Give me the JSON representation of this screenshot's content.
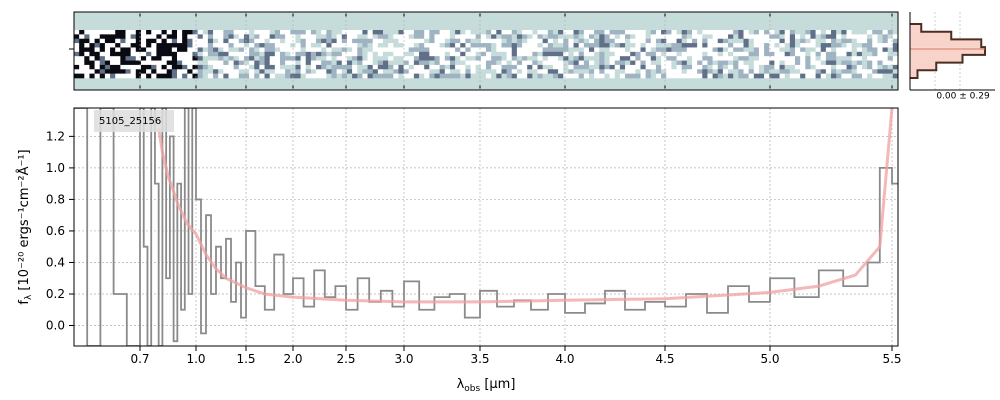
{
  "chart_data": [
    {
      "type": "heatmap",
      "description_role": "2D spectrum strip",
      "colormap": [
        "#ffffff",
        "#c5dcdb",
        "#9fb3c2",
        "#5f7088",
        "#0a0a12"
      ],
      "background_color": "#c5dcdb",
      "rows": 11,
      "cols": 160,
      "x_ticks_top_count": 0
    },
    {
      "type": "line",
      "label_box": "5105_25156",
      "xlabel_tex": "obs",
      "xlabel_main": "λ",
      "xlabel_unit": "[μm]",
      "ylabel_main": "f",
      "ylabel_unit": "[10⁻²⁰ ergs⁻¹cm⁻²Å⁻¹]",
      "ylabel_full": "f_λ [10^-20 ergs^-1cm^-2Å^-1]",
      "x_scale": "reciprocal-stretched",
      "x_range": [
        0.6,
        5.52
      ],
      "ylim": [
        -0.13,
        1.38
      ],
      "y_ticks": [
        0.0,
        0.2,
        0.4,
        0.6,
        0.8,
        1.0,
        1.2
      ],
      "x_ticks": [
        {
          "v": 0.7,
          "label": "0.7"
        },
        {
          "v": 1.0,
          "label": "1.0"
        },
        {
          "v": 1.5,
          "label": "1.5"
        },
        {
          "v": 2.0,
          "label": "2.0"
        },
        {
          "v": 2.5,
          "label": "2.5"
        },
        {
          "v": 3.0,
          "label": "3.0"
        },
        {
          "v": 3.5,
          "label": "3.5"
        },
        {
          "v": 4.0,
          "label": "4.0"
        },
        {
          "v": 4.5,
          "label": "4.5"
        },
        {
          "v": 5.0,
          "label": "5.0"
        },
        {
          "v": 5.5,
          "label": "5.5"
        }
      ],
      "grid": true,
      "series": [
        {
          "kind": "data-step",
          "color": "#8a8a8a",
          "x": [
            0.6,
            0.62,
            0.64,
            0.66,
            0.68,
            0.7,
            0.72,
            0.74,
            0.76,
            0.78,
            0.8,
            0.82,
            0.84,
            0.86,
            0.88,
            0.9,
            0.92,
            0.94,
            0.96,
            0.98,
            1.0,
            1.05,
            1.1,
            1.15,
            1.2,
            1.25,
            1.3,
            1.35,
            1.4,
            1.45,
            1.5,
            1.6,
            1.7,
            1.8,
            1.9,
            2.0,
            2.1,
            2.2,
            2.3,
            2.4,
            2.5,
            2.6,
            2.7,
            2.8,
            2.9,
            3.0,
            3.1,
            3.2,
            3.3,
            3.4,
            3.5,
            3.6,
            3.7,
            3.8,
            3.9,
            4.0,
            4.1,
            4.2,
            4.3,
            4.4,
            4.5,
            4.6,
            4.7,
            4.8,
            4.9,
            5.0,
            5.1,
            5.2,
            5.3,
            5.4,
            5.45,
            5.5
          ],
          "y": [
            1.38,
            -0.13,
            1.38,
            0.2,
            -0.13,
            1.38,
            0.5,
            -0.13,
            1.38,
            0.9,
            -0.13,
            1.38,
            0.3,
            1.2,
            -0.1,
            0.9,
            0.1,
            1.38,
            0.2,
            1.38,
            0.8,
            -0.05,
            0.7,
            0.2,
            0.5,
            0.3,
            0.55,
            0.15,
            0.4,
            0.05,
            0.6,
            0.25,
            0.1,
            0.45,
            0.2,
            0.3,
            0.12,
            0.35,
            0.18,
            0.25,
            0.1,
            0.3,
            0.15,
            0.22,
            0.12,
            0.28,
            0.1,
            0.18,
            0.2,
            0.05,
            0.22,
            0.12,
            0.16,
            0.1,
            0.2,
            0.08,
            0.14,
            0.22,
            0.1,
            0.15,
            0.12,
            0.2,
            0.08,
            0.25,
            0.15,
            0.3,
            0.18,
            0.35,
            0.25,
            0.4,
            1.0,
            0.9
          ]
        },
        {
          "kind": "model",
          "color": "#f2a0a0",
          "x": [
            0.8,
            0.82,
            0.85,
            0.88,
            0.9,
            0.95,
            1.0,
            1.1,
            1.2,
            1.3,
            1.5,
            1.7,
            2.0,
            2.5,
            3.0,
            3.5,
            4.0,
            4.5,
            5.0,
            5.2,
            5.35,
            5.45,
            5.5
          ],
          "y": [
            1.25,
            1.1,
            0.95,
            0.85,
            0.78,
            0.65,
            0.58,
            0.45,
            0.36,
            0.3,
            0.24,
            0.2,
            0.18,
            0.16,
            0.15,
            0.15,
            0.16,
            0.17,
            0.21,
            0.25,
            0.32,
            0.5,
            1.38
          ]
        }
      ]
    },
    {
      "type": "bar",
      "role": "side histogram",
      "annotation": "0.00 ± 0.29",
      "bins_y": [
        -3,
        -2,
        -1,
        0,
        1,
        2,
        3
      ],
      "values": [
        0.15,
        0.55,
        0.95,
        1.0,
        0.7,
        0.35,
        0.1
      ],
      "fill_color": "#f7d3c9",
      "line_color": "#4a2e22"
    }
  ]
}
